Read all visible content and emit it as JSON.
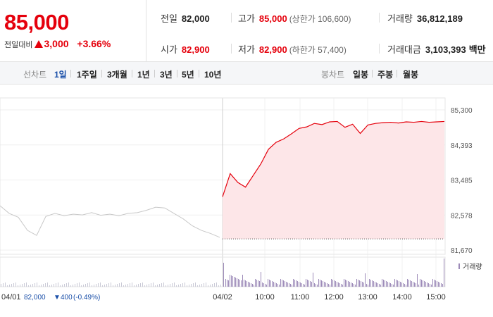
{
  "summary": {
    "current_price": "85,000",
    "change_label": "전일대비",
    "change_value": "3,000",
    "change_pct": "+3.66%",
    "stats": {
      "prev_close": {
        "label": "전일",
        "value": "82,000"
      },
      "high": {
        "label": "고가",
        "value": "85,000",
        "sub": "(상한가 106,600)"
      },
      "volume": {
        "label": "거래량",
        "value": "36,812,189"
      },
      "open": {
        "label": "시가",
        "value": "82,900"
      },
      "low": {
        "label": "저가",
        "value": "82,900",
        "sub": "(하한가 57,400)"
      },
      "amount": {
        "label": "거래대금",
        "value": "3,103,393",
        "unit": "백만"
      }
    }
  },
  "toolbar": {
    "line_chart_label": "선차트",
    "periods": [
      "1일",
      "1주일",
      "3개월",
      "1년",
      "3년",
      "5년",
      "10년"
    ],
    "selected_period": "1일",
    "candle_chart_label": "봉차트",
    "candle_periods": [
      "일봉",
      "주봉",
      "월봉"
    ]
  },
  "colors": {
    "up": "#e5000c",
    "prev_day_line": "#c8c8c8",
    "fill": "#fde6e8",
    "volume": "#9c8ab8",
    "accent": "#1a4fa8"
  },
  "chart_data": {
    "type": "line",
    "y_ticks": [
      "85,300",
      "84,393",
      "83,485",
      "82,578",
      "81,670"
    ],
    "ylim": [
      81670,
      85300
    ],
    "baseline": 81960,
    "x_labels": [
      "04/01",
      "04/02",
      "10:00",
      "11:00",
      "12:00",
      "13:00",
      "14:00",
      "15:00"
    ],
    "prev_day_info": {
      "date": "04/01",
      "close": "82,000",
      "change": "400",
      "change_pct": "(-0.49%)"
    },
    "volume_legend": "거래량",
    "series": [
      {
        "values": [
          82820,
          82620,
          82520,
          82180,
          82050,
          82540,
          82620,
          82560,
          82600,
          82580,
          82640,
          82570,
          82600,
          82560,
          82620,
          82640,
          82700,
          82780,
          82760,
          82620,
          82480,
          82300,
          82180,
          82100,
          82000
        ]
      },
      {
        "values": [
          83050,
          83650,
          83420,
          83300,
          83600,
          83900,
          84280,
          84460,
          84550,
          84680,
          84820,
          84860,
          84950,
          84920,
          84990,
          85000,
          84850,
          84930,
          84690,
          84910,
          84950,
          84970,
          84980,
          84960,
          84990,
          84980,
          85000,
          84980,
          84990,
          85000
        ]
      }
    ]
  }
}
